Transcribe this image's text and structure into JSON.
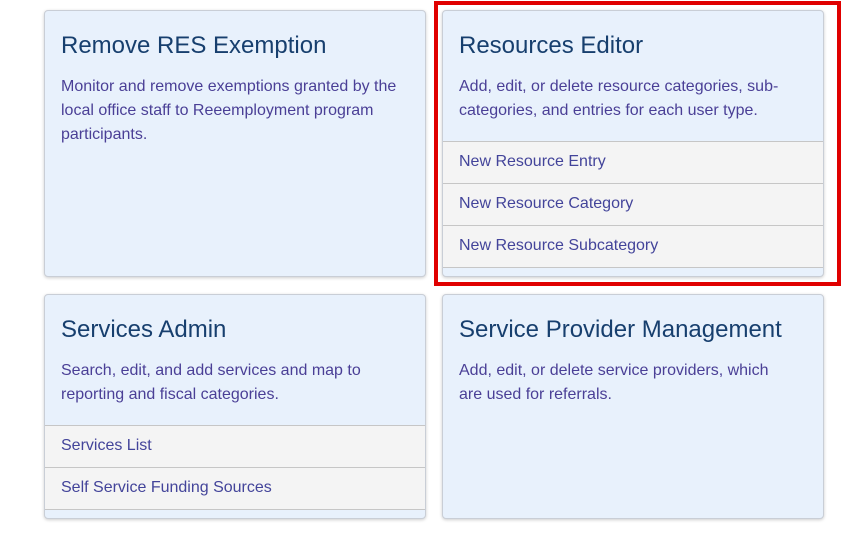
{
  "cards": [
    {
      "title": "Remove RES Exemption",
      "description": "Monitor and remove exemptions granted by the local office staff to Reeemployment program participants.",
      "links": []
    },
    {
      "title": "Resources Editor",
      "description": "Add, edit, or delete resource categories, sub-categories, and entries for each user type.",
      "links": [
        "New Resource Entry",
        "New Resource Category",
        "New Resource Subcategory"
      ]
    },
    {
      "title": "Services Admin",
      "description": "Search, edit, and add services and map to reporting and fiscal categories.",
      "links": [
        "Services List",
        "Self Service Funding Sources"
      ]
    },
    {
      "title": "Service Provider Management",
      "description": "Add, edit, or delete service providers, which are used for referrals.",
      "links": []
    }
  ],
  "highlight_color": "#e00000"
}
